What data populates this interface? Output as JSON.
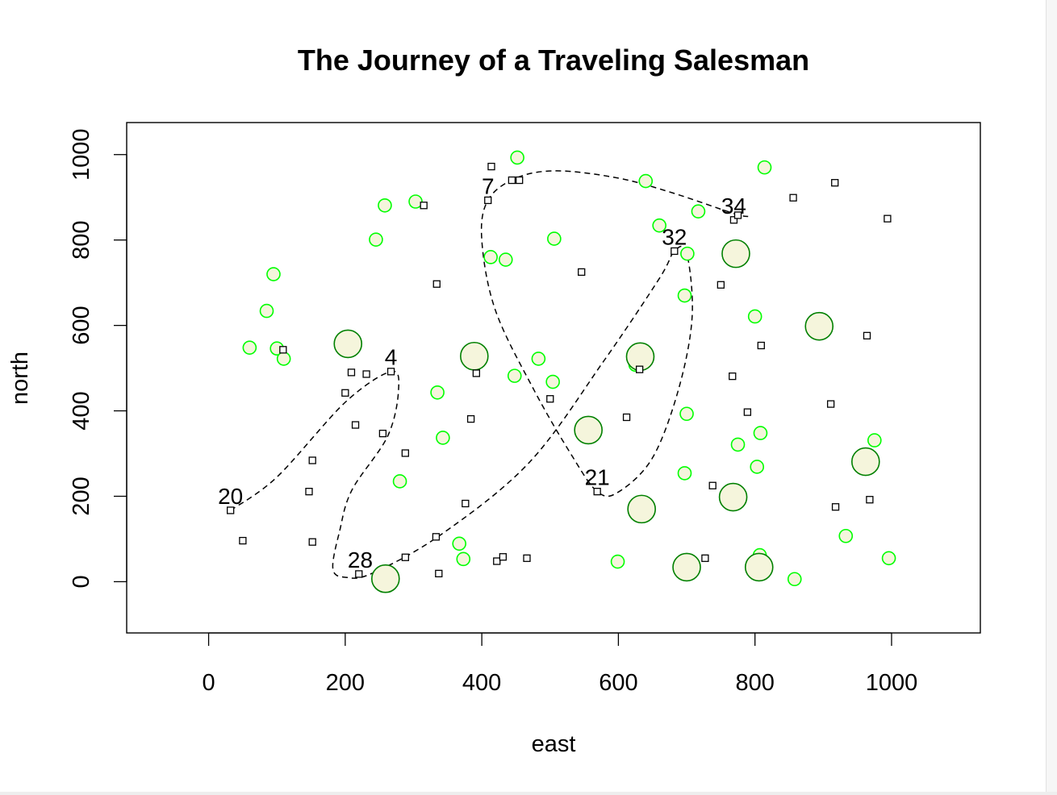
{
  "chart_data": {
    "type": "scatter",
    "title": "The Journey of a Traveling Salesman",
    "xlabel": "east",
    "ylabel": "north",
    "xlim": [
      -120,
      1130
    ],
    "ylim": [
      -120,
      1075
    ],
    "x_ticks": [
      0,
      200,
      400,
      600,
      800,
      1000
    ],
    "y_ticks": [
      0,
      200,
      400,
      600,
      800,
      1000
    ],
    "grid": false,
    "colors": {
      "small_circle_stroke": "#00ff00",
      "small_circle_fill": "#f5f5dc",
      "large_circle_stroke": "#008000",
      "large_circle_fill": "#f5f5dc",
      "square_stroke": "#000000",
      "route_stroke": "#000000"
    },
    "small_circles": [
      [
        60,
        548
      ],
      [
        95,
        720
      ],
      [
        85,
        634
      ],
      [
        100,
        546
      ],
      [
        110,
        522
      ],
      [
        245,
        801
      ],
      [
        258,
        881
      ],
      [
        303,
        890
      ],
      [
        335,
        443
      ],
      [
        343,
        337
      ],
      [
        280,
        235
      ],
      [
        367,
        89
      ],
      [
        373,
        53
      ],
      [
        413,
        760
      ],
      [
        435,
        754
      ],
      [
        452,
        993
      ],
      [
        448,
        482
      ],
      [
        483,
        522
      ],
      [
        506,
        803
      ],
      [
        504,
        468
      ],
      [
        625,
        508
      ],
      [
        599,
        47
      ],
      [
        640,
        938
      ],
      [
        660,
        834
      ],
      [
        697,
        670
      ],
      [
        701,
        768
      ],
      [
        700,
        393
      ],
      [
        697,
        254
      ],
      [
        717,
        867
      ],
      [
        775,
        321
      ],
      [
        800,
        621
      ],
      [
        808,
        348
      ],
      [
        803,
        269
      ],
      [
        807,
        62
      ],
      [
        814,
        970
      ],
      [
        858,
        6
      ],
      [
        975,
        331
      ],
      [
        933,
        107
      ],
      [
        996,
        55
      ],
      [
        960,
        280
      ]
    ],
    "large_circles": [
      [
        204,
        557
      ],
      [
        259,
        7
      ],
      [
        389,
        528
      ],
      [
        556,
        355
      ],
      [
        632,
        527
      ],
      [
        634,
        170
      ],
      [
        700,
        34
      ],
      [
        768,
        198
      ],
      [
        772,
        768
      ],
      [
        806,
        34
      ],
      [
        894,
        598
      ],
      [
        962,
        281
      ]
    ],
    "squares": [
      [
        32,
        167
      ],
      [
        50,
        96
      ],
      [
        109,
        543
      ],
      [
        147,
        211
      ],
      [
        152,
        284
      ],
      [
        152,
        93
      ],
      [
        200,
        442
      ],
      [
        209,
        490
      ],
      [
        215,
        367
      ],
      [
        231,
        486
      ],
      [
        255,
        347
      ],
      [
        267,
        492
      ],
      [
        288,
        301
      ],
      [
        288,
        57
      ],
      [
        315,
        881
      ],
      [
        333,
        105
      ],
      [
        334,
        697
      ],
      [
        337,
        19
      ],
      [
        376,
        183
      ],
      [
        384,
        381
      ],
      [
        392,
        488
      ],
      [
        409,
        893
      ],
      [
        414,
        972
      ],
      [
        422,
        48
      ],
      [
        431,
        58
      ],
      [
        444,
        940
      ],
      [
        455,
        940
      ],
      [
        466,
        55
      ],
      [
        500,
        428
      ],
      [
        546,
        725
      ],
      [
        569,
        211
      ],
      [
        612,
        385
      ],
      [
        631,
        497
      ],
      [
        682,
        774
      ],
      [
        738,
        225
      ],
      [
        750,
        695
      ],
      [
        767,
        481
      ],
      [
        769,
        847
      ],
      [
        775,
        858
      ],
      [
        789,
        397
      ],
      [
        809,
        553
      ],
      [
        856,
        899
      ],
      [
        911,
        416
      ],
      [
        917,
        934
      ],
      [
        918,
        175
      ],
      [
        964,
        576
      ],
      [
        968,
        192
      ],
      [
        994,
        850
      ],
      [
        220,
        18
      ],
      [
        727,
        55
      ]
    ],
    "route_labels": [
      {
        "text": "20",
        "x": 32,
        "y": 182
      },
      {
        "text": "4",
        "x": 267,
        "y": 508
      },
      {
        "text": "28",
        "x": 222,
        "y": 33
      },
      {
        "text": "7",
        "x": 409,
        "y": 908
      },
      {
        "text": "32",
        "x": 682,
        "y": 789
      },
      {
        "text": "21",
        "x": 569,
        "y": 226
      },
      {
        "text": "34",
        "x": 769,
        "y": 862
      }
    ],
    "route": [
      [
        32,
        167
      ],
      [
        100,
        245
      ],
      [
        200,
        420
      ],
      [
        267,
        492
      ],
      [
        278,
        448
      ],
      [
        262,
        340
      ],
      [
        210,
        215
      ],
      [
        192,
        120
      ],
      [
        182,
        30
      ],
      [
        202,
        10
      ],
      [
        240,
        20
      ],
      [
        340,
        110
      ],
      [
        470,
        280
      ],
      [
        580,
        520
      ],
      [
        660,
        710
      ],
      [
        682,
        774
      ],
      [
        700,
        770
      ],
      [
        708,
        620
      ],
      [
        688,
        450
      ],
      [
        650,
        290
      ],
      [
        600,
        210
      ],
      [
        569,
        211
      ],
      [
        530,
        300
      ],
      [
        476,
        450
      ],
      [
        420,
        635
      ],
      [
        400,
        800
      ],
      [
        409,
        893
      ],
      [
        450,
        945
      ],
      [
        510,
        962
      ],
      [
        600,
        945
      ],
      [
        680,
        910
      ],
      [
        769,
        862
      ],
      [
        790,
        855
      ]
    ]
  }
}
